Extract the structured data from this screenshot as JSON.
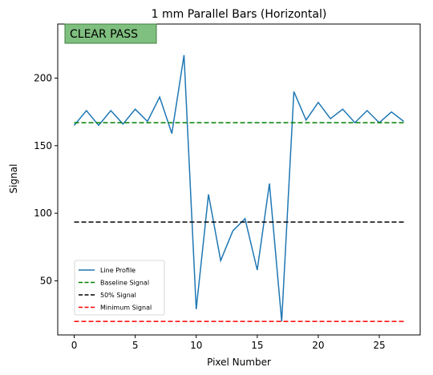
{
  "chart_data": {
    "type": "line",
    "title": "1 mm Parallel Bars (Horizontal)",
    "xlabel": "Pixel Number",
    "ylabel": "Signal",
    "xlim": [
      -1.35,
      28.35
    ],
    "ylim": [
      10,
      240
    ],
    "xticks": [
      0,
      5,
      10,
      15,
      20,
      25
    ],
    "yticks": [
      50,
      100,
      150,
      200
    ],
    "grid": false,
    "legend_position": "lower-left",
    "status_badge": {
      "text": "CLEAR PASS",
      "color": "#7fbf7f",
      "border": "#3f7f3f"
    },
    "series": [
      {
        "name": "Line Profile",
        "color": "#1f77b4",
        "style": "solid",
        "x": [
          0,
          1,
          2,
          3,
          4,
          5,
          6,
          7,
          8,
          9,
          10,
          11,
          12,
          13,
          14,
          15,
          16,
          17,
          18,
          19,
          20,
          21,
          22,
          23,
          24,
          25,
          26,
          27
        ],
        "values": [
          165,
          176,
          165,
          176,
          166,
          177,
          168,
          186,
          159,
          217,
          29,
          114,
          65,
          87,
          96,
          58,
          122,
          20,
          190,
          169,
          182,
          170,
          177,
          167,
          176,
          167,
          175,
          168
        ]
      },
      {
        "name": "Baseline Signal",
        "color": "#008000",
        "style": "dashed",
        "x": [
          0,
          27
        ],
        "values": [
          167,
          167
        ]
      },
      {
        "name": "50% Signal",
        "color": "#000000",
        "style": "dashed",
        "x": [
          0,
          27
        ],
        "values": [
          93.5,
          93.5
        ]
      },
      {
        "name": "Minimum Signal",
        "color": "#ff0000",
        "style": "dashed",
        "x": [
          0,
          27
        ],
        "values": [
          20,
          20
        ]
      }
    ]
  }
}
